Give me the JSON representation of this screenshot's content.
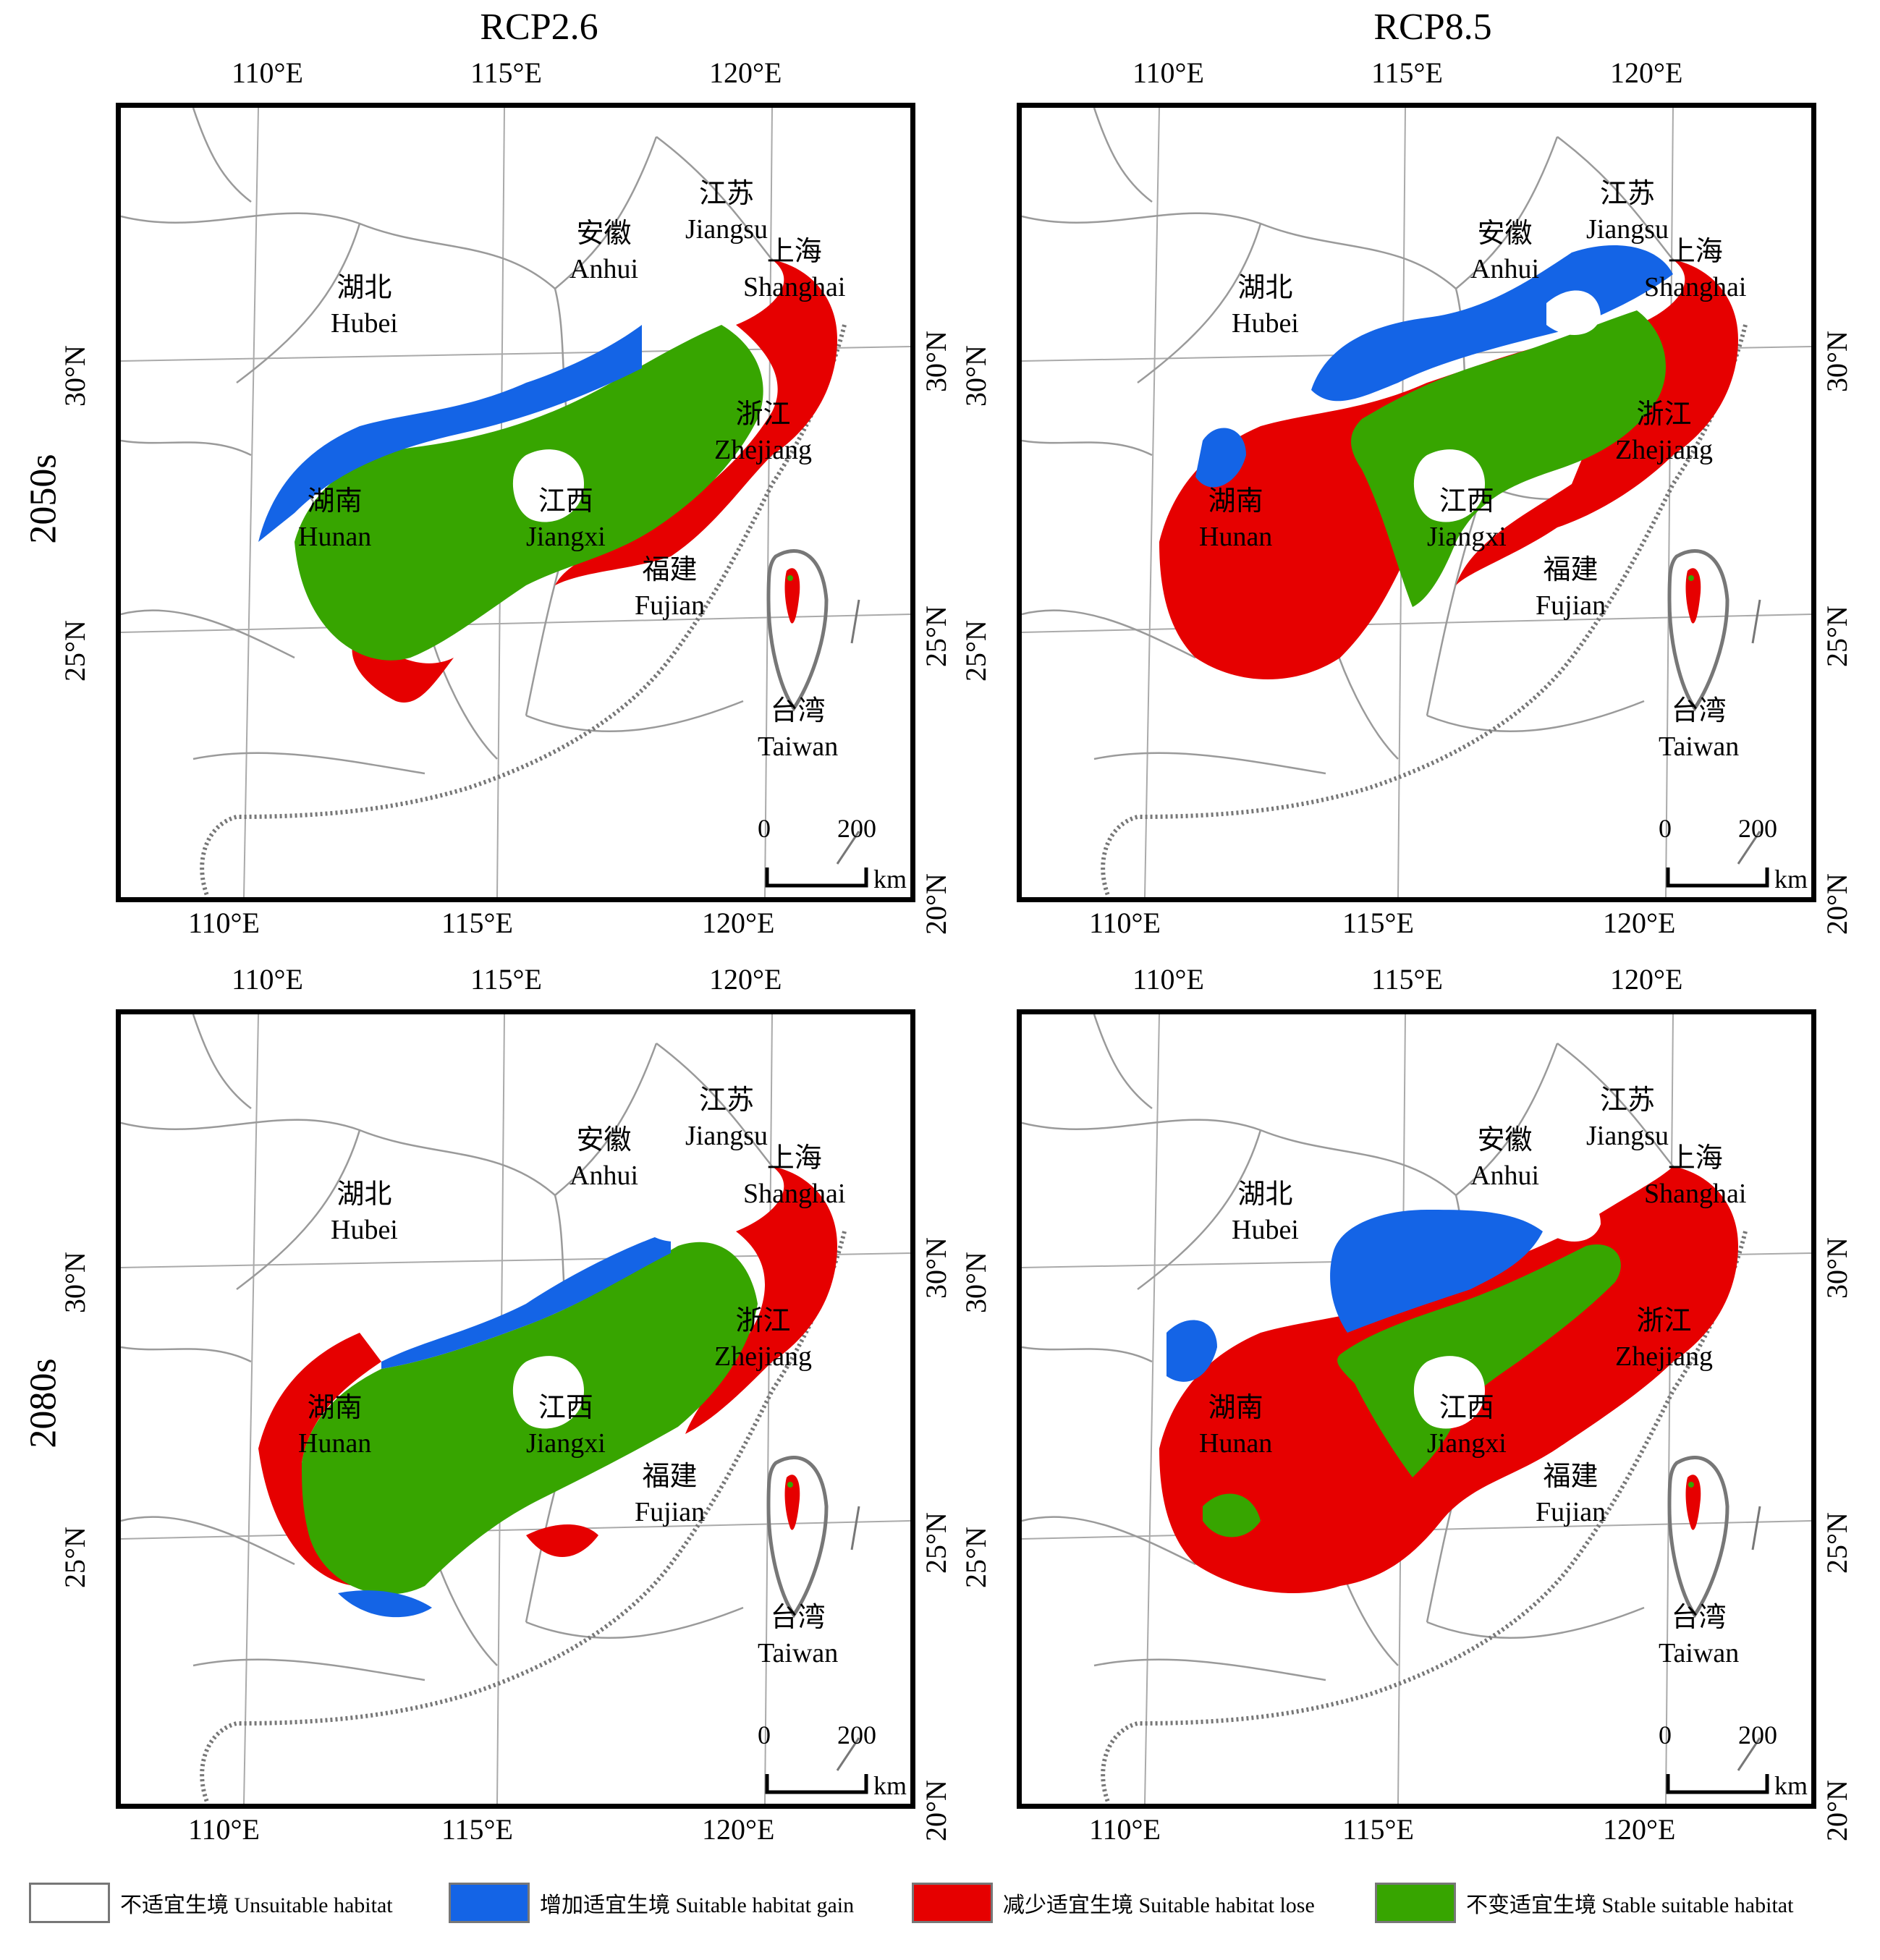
{
  "columns": [
    "RCP2.6",
    "RCP8.5"
  ],
  "rows": [
    "2050s",
    "2080s"
  ],
  "longitude_labels": [
    "110°E",
    "115°E",
    "120°E"
  ],
  "latitude_labels": [
    "30°N",
    "25°N",
    "20°N"
  ],
  "provinces": [
    {
      "zh": "江苏",
      "en": "Jiangsu"
    },
    {
      "zh": "安徽",
      "en": "Anhui"
    },
    {
      "zh": "上海",
      "en": "Shanghai"
    },
    {
      "zh": "湖北",
      "en": "Hubei"
    },
    {
      "zh": "浙江",
      "en": "Zhejiang"
    },
    {
      "zh": "湖南",
      "en": "Hunan"
    },
    {
      "zh": "江西",
      "en": "Jiangxi"
    },
    {
      "zh": "福建",
      "en": "Fujian"
    },
    {
      "zh": "台湾",
      "en": "Taiwan"
    }
  ],
  "scale_bar": {
    "start": "0",
    "end": "200",
    "unit": "km"
  },
  "legend": [
    {
      "label": "不适宜生境 Unsuitable habitat",
      "color": "#ffffff"
    },
    {
      "label": "增加适宜生境 Suitable habitat gain",
      "color": "#1464e6"
    },
    {
      "label": "减少适宜生境 Suitable habitat lose",
      "color": "#e60000"
    },
    {
      "label": "不变适宜生境 Stable suitable habitat",
      "color": "#37a500"
    }
  ],
  "colors": {
    "gain": "#1464e6",
    "lose": "#e60000",
    "stable": "#37a500",
    "boundary": "#9a9a9a",
    "coast": "#777777"
  }
}
